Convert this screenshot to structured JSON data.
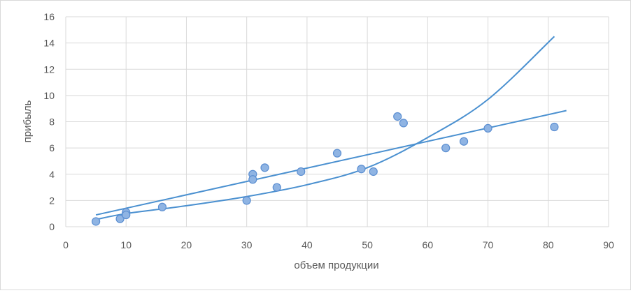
{
  "chart_data": {
    "type": "scatter",
    "title": "",
    "xlabel": "объем продукции",
    "ylabel": "прибыль",
    "xlim": [
      0,
      90
    ],
    "ylim": [
      0,
      16
    ],
    "x_ticks": [
      0,
      10,
      20,
      30,
      40,
      50,
      60,
      70,
      80,
      90
    ],
    "y_ticks": [
      0,
      2,
      4,
      6,
      8,
      10,
      12,
      14,
      16
    ],
    "grid": true,
    "legend": "none",
    "colors": {
      "point_fill": "#8fb4e3",
      "point_stroke": "#5b8ed1",
      "trendline": "#4a90d0",
      "grid": "#d9d9d9",
      "text": "#595959"
    },
    "points": [
      {
        "x": 5,
        "y": 0.4
      },
      {
        "x": 9,
        "y": 0.6
      },
      {
        "x": 10,
        "y": 1.1
      },
      {
        "x": 10,
        "y": 0.9
      },
      {
        "x": 16,
        "y": 1.5
      },
      {
        "x": 30,
        "y": 2.0
      },
      {
        "x": 31,
        "y": 4.0
      },
      {
        "x": 31,
        "y": 3.6
      },
      {
        "x": 33,
        "y": 4.5
      },
      {
        "x": 35,
        "y": 3.0
      },
      {
        "x": 39,
        "y": 4.2
      },
      {
        "x": 45,
        "y": 5.6
      },
      {
        "x": 49,
        "y": 4.4
      },
      {
        "x": 51,
        "y": 4.2
      },
      {
        "x": 55,
        "y": 8.4
      },
      {
        "x": 56,
        "y": 7.9
      },
      {
        "x": 63,
        "y": 6.0
      },
      {
        "x": 66,
        "y": 6.5
      },
      {
        "x": 70,
        "y": 7.5
      },
      {
        "x": 81,
        "y": 7.6
      }
    ],
    "trendlines": [
      {
        "kind": "linear",
        "x": [
          5,
          83
        ],
        "y": [
          0.9,
          8.85
        ]
      },
      {
        "kind": "exponential",
        "x": [
          5,
          10,
          20,
          30,
          40,
          50,
          60,
          70,
          81
        ],
        "y": [
          0.55,
          1.0,
          1.6,
          2.3,
          3.2,
          4.5,
          6.8,
          9.7,
          14.5
        ]
      }
    ]
  }
}
